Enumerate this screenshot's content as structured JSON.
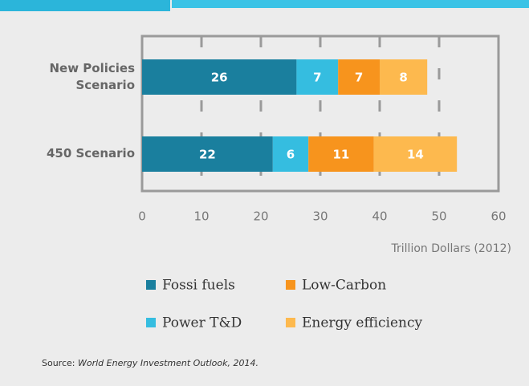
{
  "chart_data": {
    "type": "stacked_barh",
    "categories": [
      "New Policies Scenario",
      "450 Scenario"
    ],
    "series": [
      {
        "name": "Fossi fuels",
        "color": "#1a7f9e",
        "values": [
          26,
          22
        ]
      },
      {
        "name": "Power T&D",
        "color": "#35bde0",
        "values": [
          7,
          6
        ]
      },
      {
        "name": "Low-Carbon",
        "color": "#f7941d",
        "values": [
          7,
          11
        ]
      },
      {
        "name": "Energy efficiency",
        "color": "#fdb94e",
        "values": [
          8,
          14
        ]
      }
    ],
    "xlim": [
      0,
      60
    ],
    "xticks": [
      0,
      10,
      20,
      30,
      40,
      50,
      60
    ],
    "grid": true,
    "xlabel": "Trillion Dollars (2012)",
    "source": {
      "prefix": "Source:",
      "text": "World Energy Investment Outlook, 2014."
    }
  }
}
